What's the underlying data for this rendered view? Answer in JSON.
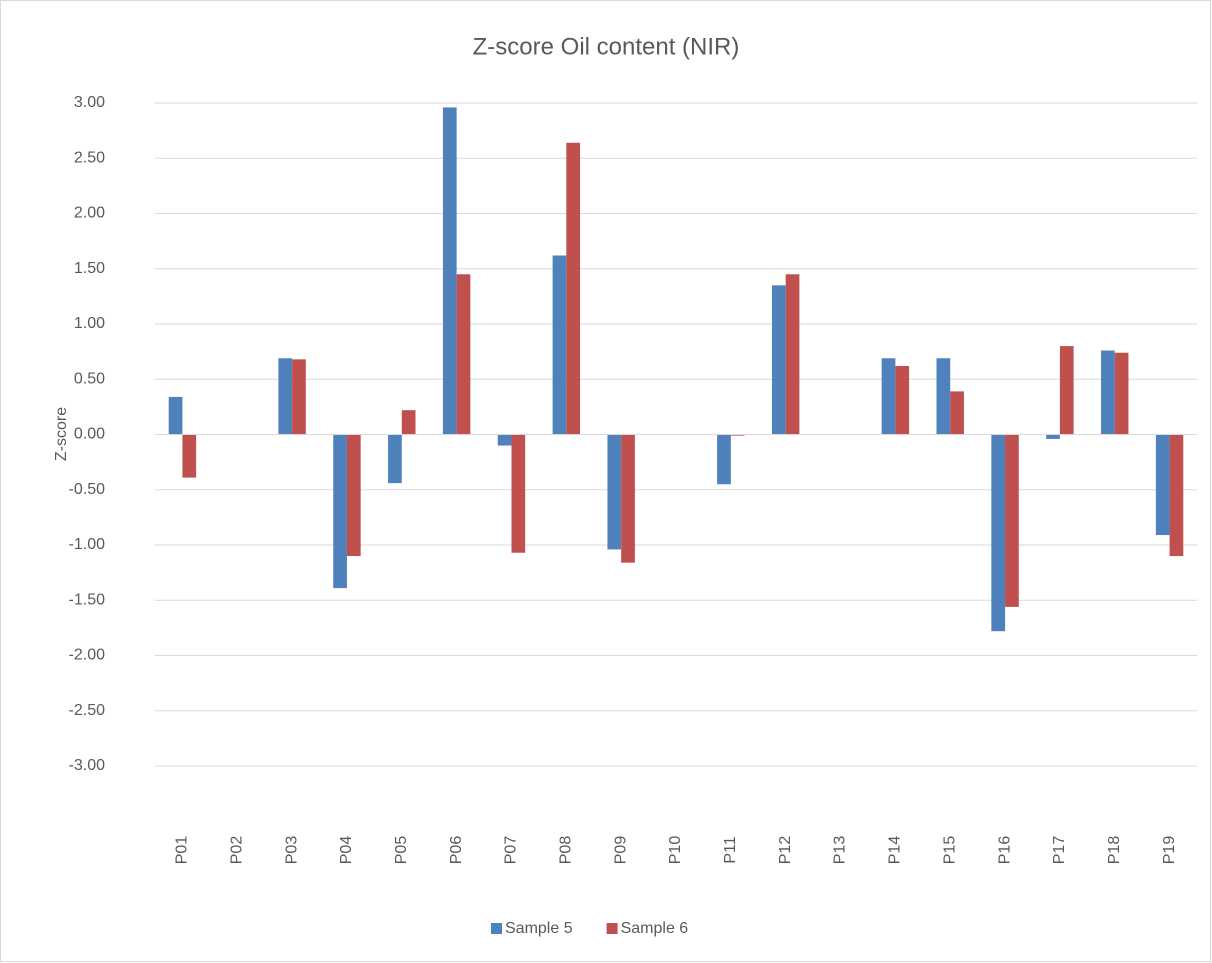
{
  "chart_data": {
    "type": "bar",
    "title": "Z-score Oil content (NIR)",
    "y_label": "Z-score",
    "categories": [
      "P01",
      "P02",
      "P03",
      "P04",
      "P05",
      "P06",
      "P07",
      "P08",
      "P09",
      "P10",
      "P11",
      "P12",
      "P13",
      "P14",
      "P15",
      "P16",
      "P17",
      "P18",
      "P19"
    ],
    "series": [
      {
        "name": "Sample 5",
        "color": "#4f81bd",
        "values": [
          0.34,
          0,
          0.69,
          -1.39,
          -0.44,
          2.96,
          -0.1,
          1.62,
          -1.04,
          0,
          -0.45,
          1.35,
          0,
          0.69,
          0.69,
          -1.78,
          -0.04,
          0.76,
          -0.91
        ]
      },
      {
        "name": "Sample 6",
        "color": "#c0504d",
        "values": [
          -0.39,
          0,
          0.68,
          -1.1,
          0.22,
          1.45,
          -1.07,
          2.64,
          -1.16,
          0,
          -0.01,
          1.45,
          0,
          0.62,
          0.39,
          -1.56,
          0.8,
          0.74,
          -1.1
        ]
      }
    ],
    "ylim": [
      -3,
      3
    ],
    "yticks": [
      {
        "value": -3,
        "label": "-3.00"
      },
      {
        "value": -2.5,
        "label": "-2.50"
      },
      {
        "value": -2,
        "label": "-2.00"
      },
      {
        "value": -1.5,
        "label": "-1.50"
      },
      {
        "value": -1,
        "label": "-1.00"
      },
      {
        "value": -0.5,
        "label": "-0.50"
      },
      {
        "value": 0,
        "label": "0.00"
      },
      {
        "value": 0.5,
        "label": "0.50"
      },
      {
        "value": 1,
        "label": "1.00"
      },
      {
        "value": 1.5,
        "label": "1.50"
      },
      {
        "value": 2,
        "label": "2.00"
      },
      {
        "value": 2.5,
        "label": "2.50"
      },
      {
        "value": 3,
        "label": "3.00"
      }
    ],
    "grid": true,
    "legend": "bottom"
  }
}
